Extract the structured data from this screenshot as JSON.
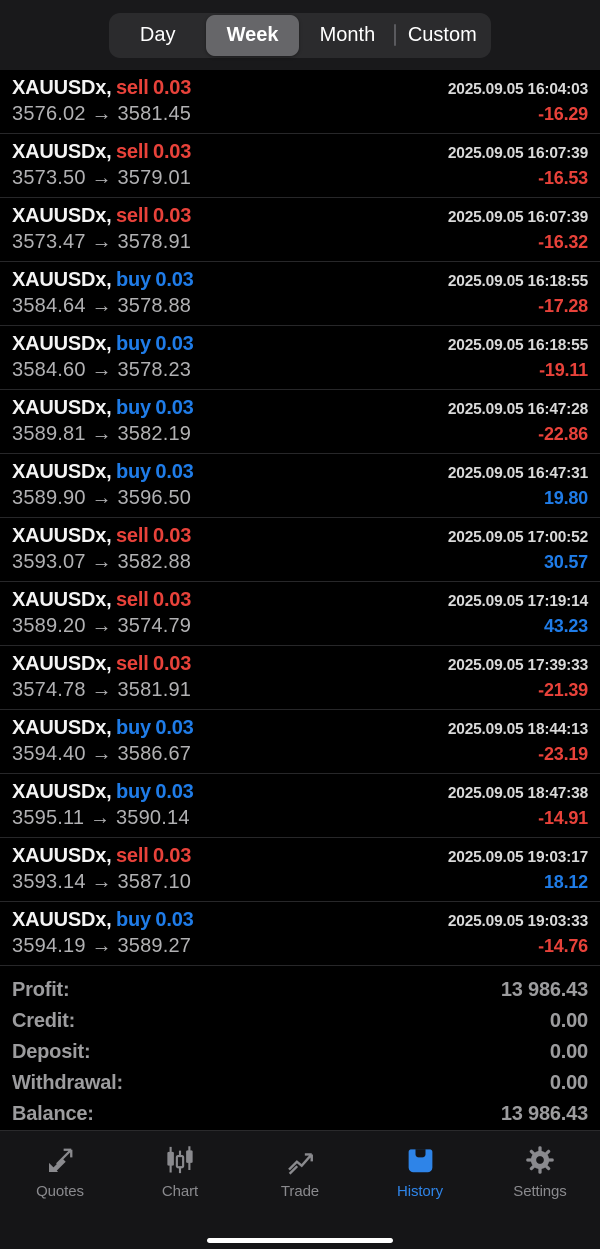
{
  "period_tabs": {
    "items": [
      {
        "label": "Day",
        "selected": false
      },
      {
        "label": "Week",
        "selected": true
      },
      {
        "label": "Month",
        "selected": false
      },
      {
        "label": "Custom",
        "selected": false
      }
    ]
  },
  "history": {
    "arrow_glyph": "→",
    "rows": [
      {
        "symbol": "XAUUSDx,",
        "side": "sell",
        "volume": "0.03",
        "datetime": "2025.09.05 16:04:03",
        "open_price": "3576.02",
        "close_price": "3581.45",
        "profit": "-16.29"
      },
      {
        "symbol": "XAUUSDx,",
        "side": "sell",
        "volume": "0.03",
        "datetime": "2025.09.05 16:07:39",
        "open_price": "3573.50",
        "close_price": "3579.01",
        "profit": "-16.53"
      },
      {
        "symbol": "XAUUSDx,",
        "side": "sell",
        "volume": "0.03",
        "datetime": "2025.09.05 16:07:39",
        "open_price": "3573.47",
        "close_price": "3578.91",
        "profit": "-16.32"
      },
      {
        "symbol": "XAUUSDx,",
        "side": "buy",
        "volume": "0.03",
        "datetime": "2025.09.05 16:18:55",
        "open_price": "3584.64",
        "close_price": "3578.88",
        "profit": "-17.28"
      },
      {
        "symbol": "XAUUSDx,",
        "side": "buy",
        "volume": "0.03",
        "datetime": "2025.09.05 16:18:55",
        "open_price": "3584.60",
        "close_price": "3578.23",
        "profit": "-19.11"
      },
      {
        "symbol": "XAUUSDx,",
        "side": "buy",
        "volume": "0.03",
        "datetime": "2025.09.05 16:47:28",
        "open_price": "3589.81",
        "close_price": "3582.19",
        "profit": "-22.86"
      },
      {
        "symbol": "XAUUSDx,",
        "side": "buy",
        "volume": "0.03",
        "datetime": "2025.09.05 16:47:31",
        "open_price": "3589.90",
        "close_price": "3596.50",
        "profit": "19.80"
      },
      {
        "symbol": "XAUUSDx,",
        "side": "sell",
        "volume": "0.03",
        "datetime": "2025.09.05 17:00:52",
        "open_price": "3593.07",
        "close_price": "3582.88",
        "profit": "30.57"
      },
      {
        "symbol": "XAUUSDx,",
        "side": "sell",
        "volume": "0.03",
        "datetime": "2025.09.05 17:19:14",
        "open_price": "3589.20",
        "close_price": "3574.79",
        "profit": "43.23"
      },
      {
        "symbol": "XAUUSDx,",
        "side": "sell",
        "volume": "0.03",
        "datetime": "2025.09.05 17:39:33",
        "open_price": "3574.78",
        "close_price": "3581.91",
        "profit": "-21.39"
      },
      {
        "symbol": "XAUUSDx,",
        "side": "buy",
        "volume": "0.03",
        "datetime": "2025.09.05 18:44:13",
        "open_price": "3594.40",
        "close_price": "3586.67",
        "profit": "-23.19"
      },
      {
        "symbol": "XAUUSDx,",
        "side": "buy",
        "volume": "0.03",
        "datetime": "2025.09.05 18:47:38",
        "open_price": "3595.11",
        "close_price": "3590.14",
        "profit": "-14.91"
      },
      {
        "symbol": "XAUUSDx,",
        "side": "sell",
        "volume": "0.03",
        "datetime": "2025.09.05 19:03:17",
        "open_price": "3593.14",
        "close_price": "3587.10",
        "profit": "18.12"
      },
      {
        "symbol": "XAUUSDx,",
        "side": "buy",
        "volume": "0.03",
        "datetime": "2025.09.05 19:03:33",
        "open_price": "3594.19",
        "close_price": "3589.27",
        "profit": "-14.76"
      }
    ]
  },
  "summary": {
    "rows": [
      {
        "label": "Profit:",
        "value": "13 986.43"
      },
      {
        "label": "Credit:",
        "value": "0.00"
      },
      {
        "label": "Deposit:",
        "value": "0.00"
      },
      {
        "label": "Withdrawal:",
        "value": "0.00"
      },
      {
        "label": "Balance:",
        "value": "13 986.43"
      }
    ]
  },
  "bottom_nav": {
    "items": [
      {
        "label": "Quotes",
        "icon": "quotes-icon",
        "active": false
      },
      {
        "label": "Chart",
        "icon": "chart-icon",
        "active": false
      },
      {
        "label": "Trade",
        "icon": "trade-icon",
        "active": false
      },
      {
        "label": "History",
        "icon": "history-icon",
        "active": true
      },
      {
        "label": "Settings",
        "icon": "settings-icon",
        "active": false
      }
    ]
  },
  "colors": {
    "sell_red": "#e8423a",
    "buy_blue": "#1f7ce8",
    "loss_red": "#e8423a",
    "gain_blue": "#1f7ce8",
    "nav_active_blue": "#2e84e8"
  }
}
